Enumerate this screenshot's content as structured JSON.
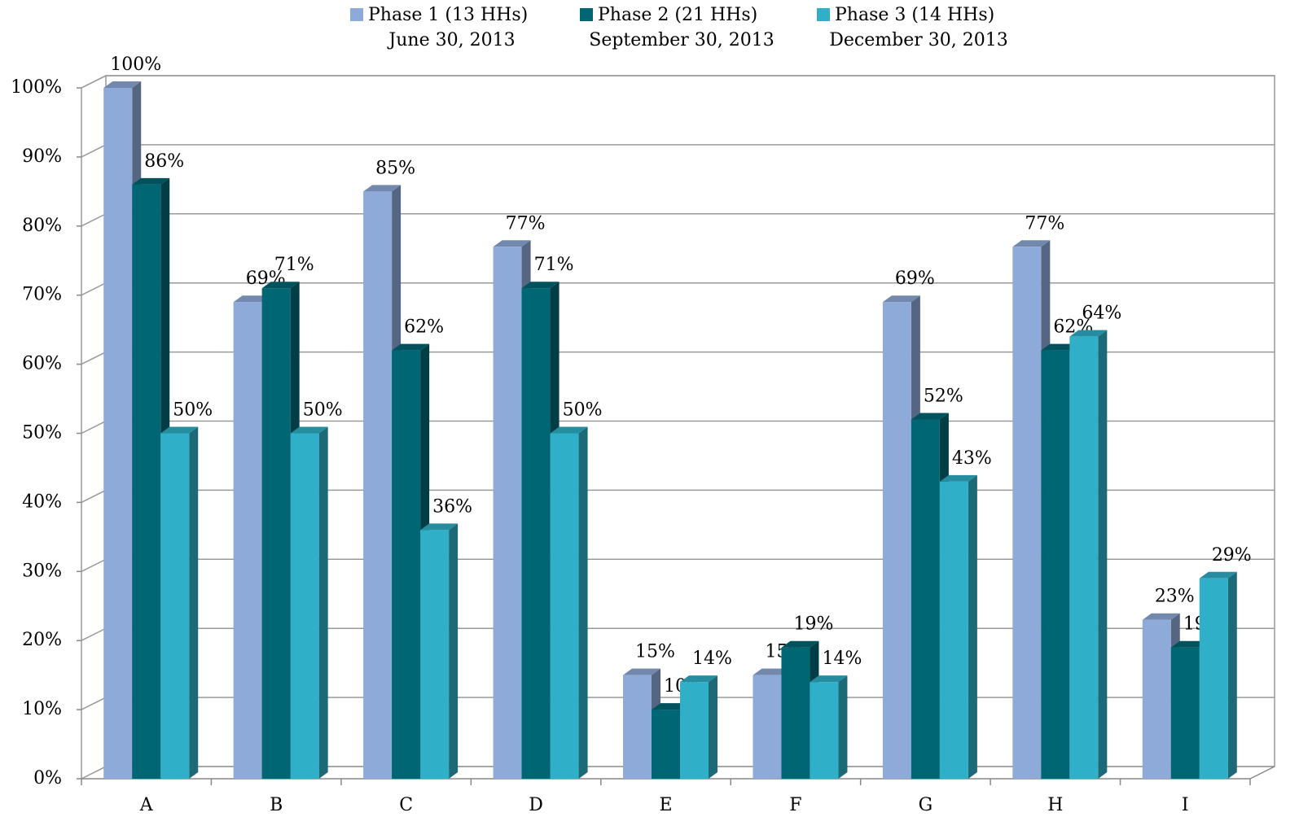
{
  "chart_data": {
    "type": "bar3d",
    "categories": [
      "A",
      "B",
      "C",
      "D",
      "E",
      "F",
      "G",
      "H",
      "I"
    ],
    "series": [
      {
        "name": "Phase 1 (13 HHs)",
        "date": "June 30, 2013",
        "color": "#8eaad8",
        "values": [
          100,
          69,
          85,
          77,
          15,
          15,
          69,
          77,
          23
        ],
        "value_labels": [
          "100%",
          "69%",
          "85%",
          "77%",
          "15%",
          "15%",
          "69%",
          "77%",
          "23%"
        ]
      },
      {
        "name": "Phase 2 (21 HHs)",
        "date": "September 30, 2013",
        "color": "#006673",
        "values": [
          86,
          71,
          62,
          71,
          10,
          19,
          52,
          62,
          19
        ],
        "value_labels": [
          "86%",
          "71%",
          "62%",
          "71%",
          "10%",
          "19%",
          "52%",
          "62%",
          "19%"
        ]
      },
      {
        "name": "Phase 3 (14 HHs)",
        "date": "December 30, 2013",
        "color": "#2fb0c8",
        "values": [
          50,
          50,
          36,
          50,
          14,
          14,
          43,
          64,
          29
        ],
        "value_labels": [
          "50%",
          "50%",
          "36%",
          "50%",
          "14%",
          "14%",
          "43%",
          "64%",
          "29%"
        ]
      }
    ],
    "ylim": [
      0,
      100
    ],
    "yticks": [
      {
        "value": 0,
        "label": "0%"
      },
      {
        "value": 10,
        "label": "10%"
      },
      {
        "value": 20,
        "label": "20%"
      },
      {
        "value": 30,
        "label": "30%"
      },
      {
        "value": 40,
        "label": "40%"
      },
      {
        "value": 50,
        "label": "50%"
      },
      {
        "value": 60,
        "label": "60%"
      },
      {
        "value": 70,
        "label": "70%"
      },
      {
        "value": 80,
        "label": "80%"
      },
      {
        "value": 90,
        "label": "90%"
      },
      {
        "value": 100,
        "label": "100%"
      }
    ],
    "grid": true
  }
}
